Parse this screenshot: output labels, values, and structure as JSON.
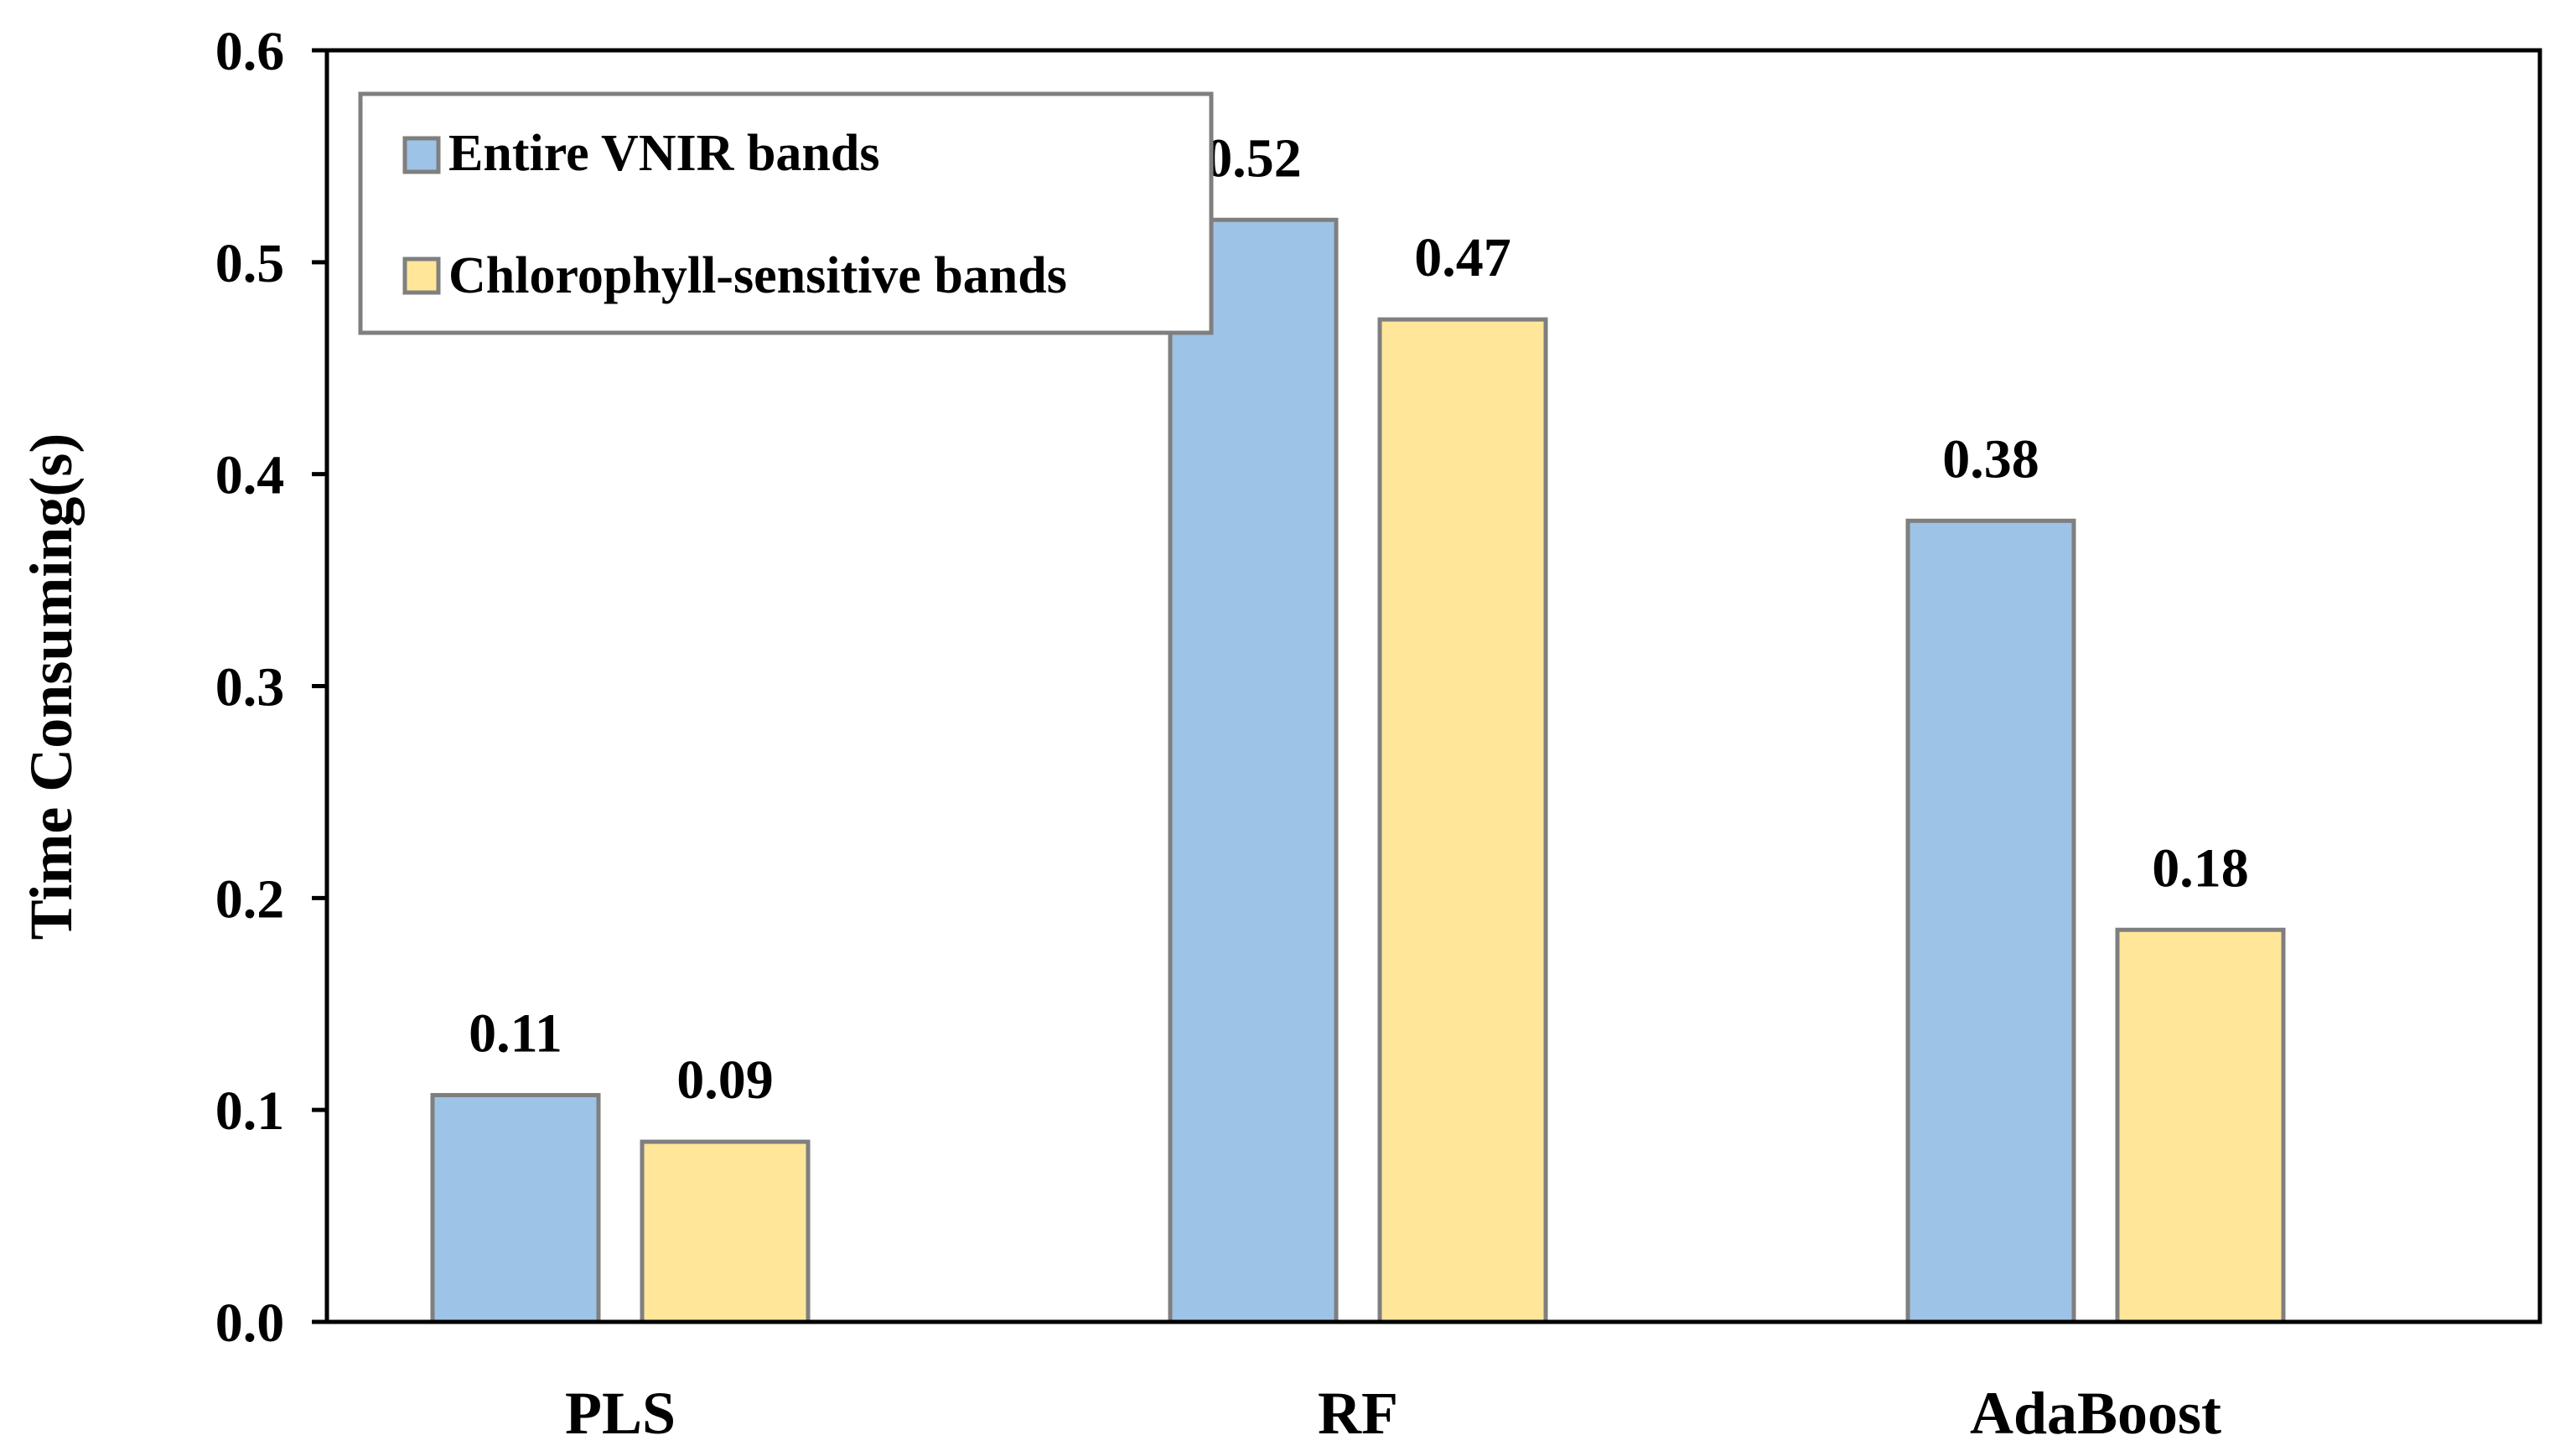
{
  "chart_data": {
    "type": "bar",
    "title": "",
    "xlabel": "",
    "ylabel": "Time Consuming(s)",
    "ylim": [
      0,
      0.6
    ],
    "yticks": [
      "0.0",
      "0.1",
      "0.2",
      "0.3",
      "0.4",
      "0.5",
      "0.6"
    ],
    "ytick_values": [
      0,
      0.1,
      0.2,
      0.3,
      0.4,
      0.5,
      0.6
    ],
    "categories": [
      "PLS",
      "RF",
      "AdaBoost"
    ],
    "series": [
      {
        "name": "Entire VNIR bands",
        "color": "#9DC3E6",
        "values": [
          0.107,
          0.52,
          0.378
        ],
        "labels": [
          "0.11",
          "0.52",
          "0.38"
        ]
      },
      {
        "name": "Chlorophyll-sensitive bands",
        "color": "#FFE699",
        "values": [
          0.085,
          0.473,
          0.185
        ],
        "labels": [
          "0.09",
          "0.47",
          "0.18"
        ]
      }
    ],
    "legend_position": "top-left",
    "grid": false,
    "bar_edge_color": "#7F7F7F"
  }
}
